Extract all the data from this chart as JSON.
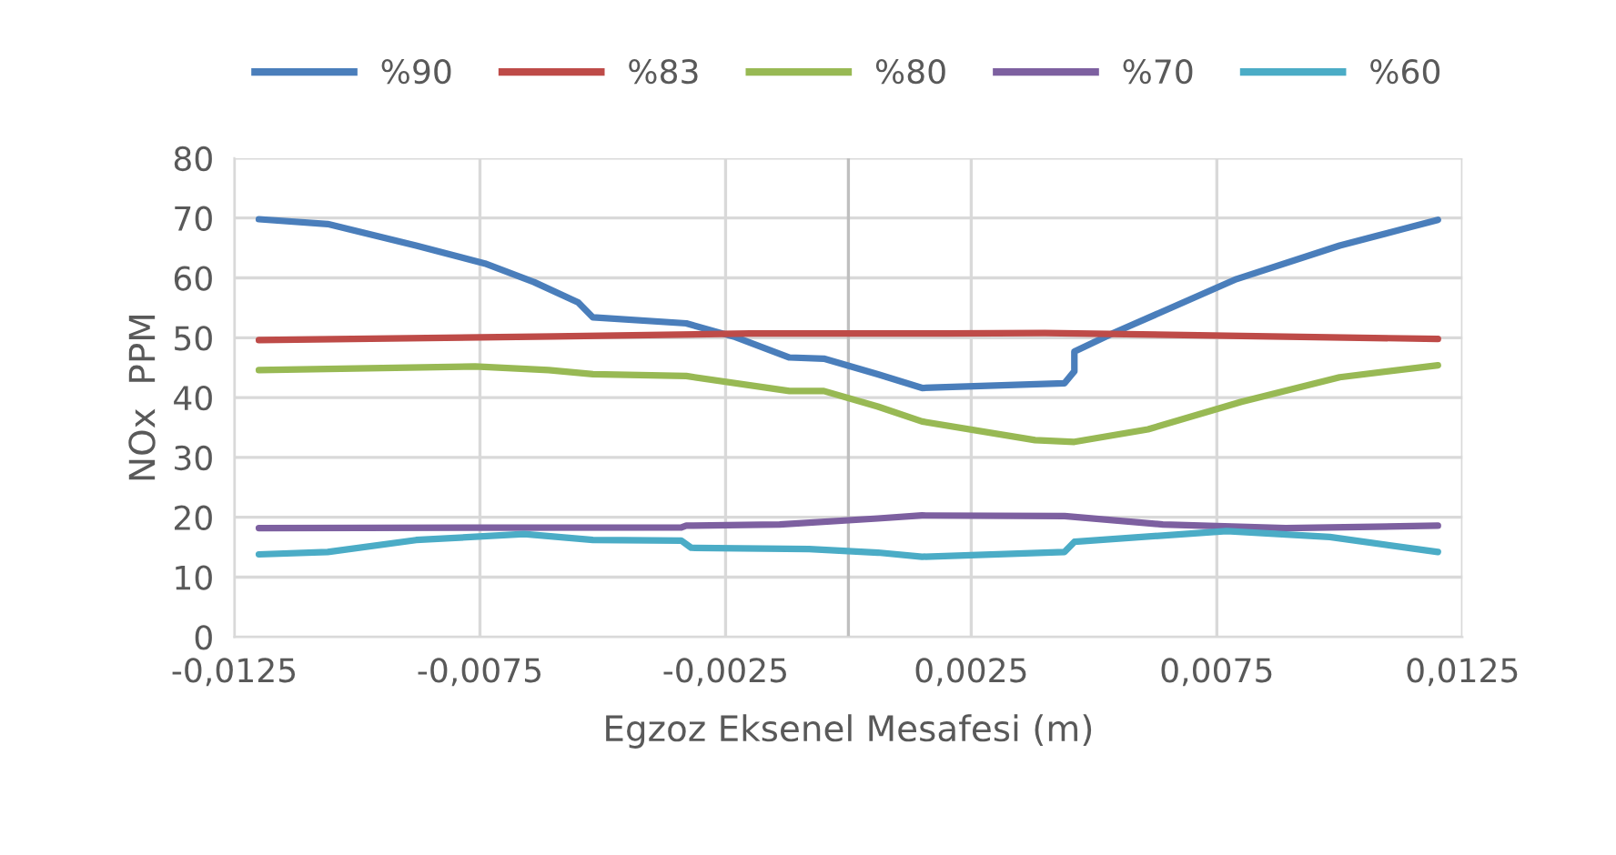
{
  "chart_data": {
    "type": "line",
    "xlabel": "Egzoz Eksenel Mesafesi (m)",
    "ylabel": "NOx  PPM",
    "xlim": [
      -0.0125,
      0.0125
    ],
    "ylim": [
      0,
      80
    ],
    "xticks": [
      {
        "value": -0.0125,
        "label": "-0,0125"
      },
      {
        "value": -0.0075,
        "label": "-0,0075"
      },
      {
        "value": -0.0025,
        "label": "-0,0025"
      },
      {
        "value": 0.0025,
        "label": "0,0025"
      },
      {
        "value": 0.0075,
        "label": "0,0075"
      },
      {
        "value": 0.0125,
        "label": "0,0125"
      }
    ],
    "yticks": [
      0,
      10,
      20,
      30,
      40,
      50,
      60,
      70,
      80
    ],
    "grid": true,
    "legend": "top",
    "marker": "none",
    "line_style": "solid",
    "ref_lines": [
      {
        "axis": "x",
        "value": 0,
        "color": "#bfbfbf"
      }
    ],
    "series": [
      {
        "name": "%90",
        "color": "#4a7ebb",
        "x": [
          -0.012,
          -0.0106,
          -0.0088,
          -0.0074,
          -0.0064,
          -0.0055,
          -0.0052,
          -0.0033,
          -0.0023,
          -0.0012,
          -0.0005,
          0.0006,
          0.0015,
          0.0044,
          0.0046,
          0.0046,
          0.0054,
          0.0079,
          0.01,
          0.012
        ],
        "values": [
          69.8,
          69.0,
          65.4,
          62.4,
          59.3,
          55.9,
          53.4,
          52.4,
          50.1,
          46.7,
          46.5,
          43.9,
          41.6,
          42.4,
          44.4,
          47.7,
          50.8,
          59.8,
          65.4,
          69.7
        ]
      },
      {
        "name": "%83",
        "color": "#be4b48",
        "x": [
          -0.012,
          -0.006,
          -0.002,
          0.002,
          0.004,
          0.008,
          0.012
        ],
        "values": [
          49.6,
          50.2,
          50.7,
          50.7,
          50.8,
          50.3,
          49.8
        ]
      },
      {
        "name": "%80",
        "color": "#98b954",
        "x": [
          -0.012,
          -0.0076,
          -0.0061,
          -0.0052,
          -0.0033,
          -0.0012,
          -0.0005,
          0.0006,
          0.0015,
          0.0038,
          0.0046,
          0.0061,
          0.008,
          0.01,
          0.012
        ],
        "values": [
          44.6,
          45.2,
          44.6,
          43.9,
          43.6,
          41.1,
          41.1,
          38.5,
          36.0,
          32.9,
          32.6,
          34.7,
          39.3,
          43.4,
          45.4
        ]
      },
      {
        "name": "%70",
        "color": "#7d60a0",
        "x": [
          -0.012,
          -0.0034,
          -0.0033,
          -0.0014,
          0.0006,
          0.0015,
          0.0044,
          0.0064,
          0.0089,
          0.012
        ],
        "values": [
          18.2,
          18.3,
          18.6,
          18.8,
          19.8,
          20.3,
          20.2,
          18.8,
          18.2,
          18.6
        ]
      },
      {
        "name": "%60",
        "color": "#4bacc6",
        "x": [
          -0.012,
          -0.0106,
          -0.0088,
          -0.0066,
          -0.0052,
          -0.0034,
          -0.0032,
          -0.0008,
          0.0006,
          0.0015,
          0.0044,
          0.0046,
          0.0077,
          0.0098,
          0.012
        ],
        "values": [
          13.8,
          14.2,
          16.2,
          17.2,
          16.2,
          16.1,
          14.9,
          14.7,
          14.1,
          13.4,
          14.2,
          15.9,
          17.7,
          16.7,
          14.2
        ]
      }
    ]
  }
}
